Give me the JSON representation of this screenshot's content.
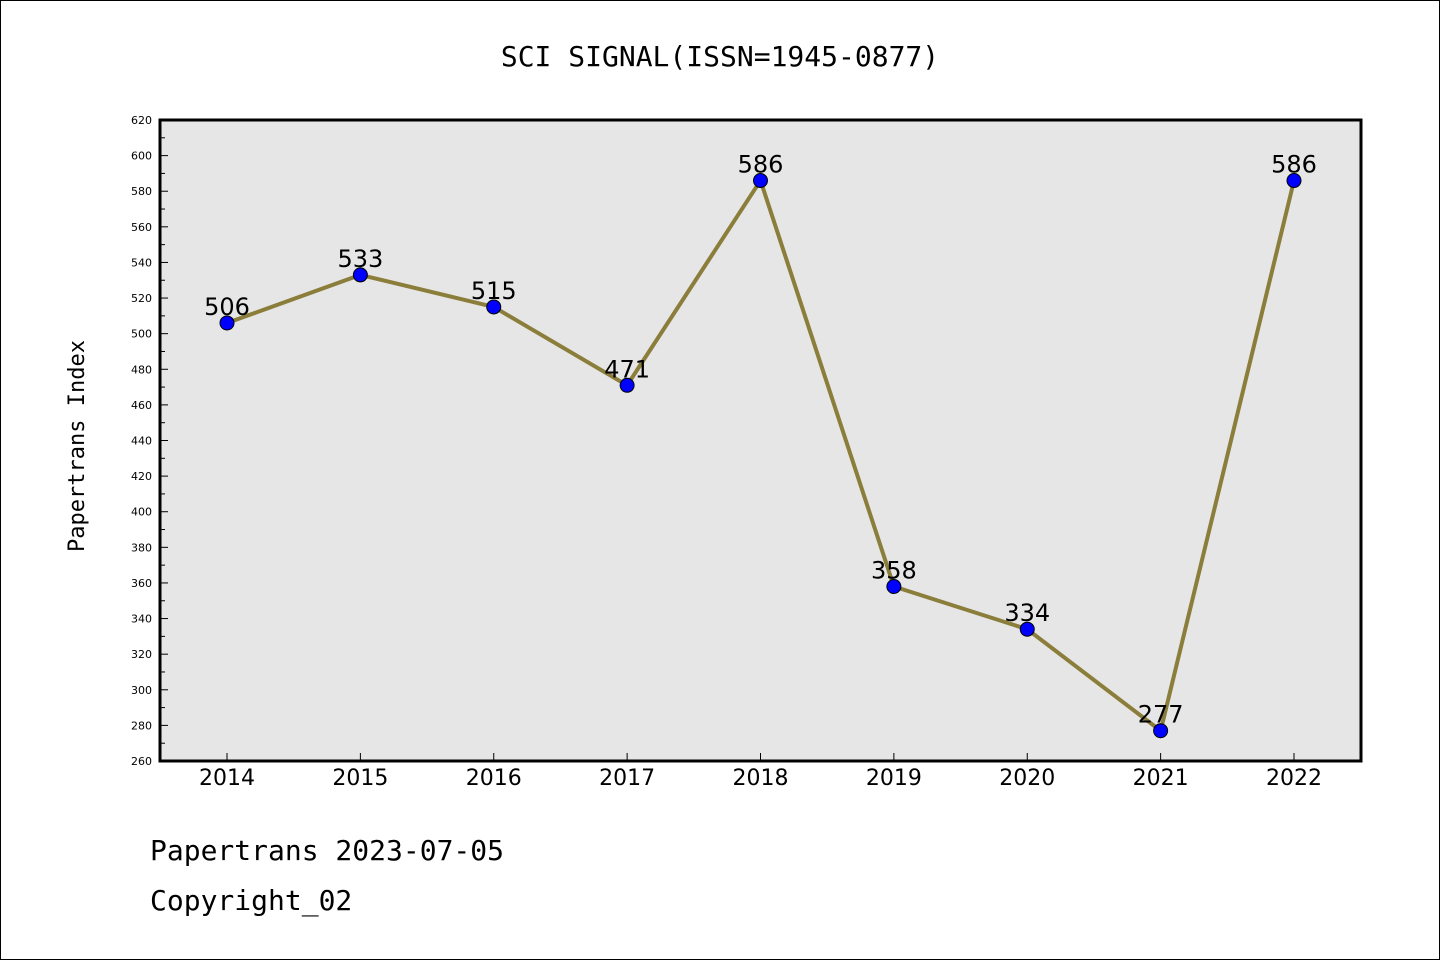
{
  "colors": {
    "plot_bg": "#e6e6e6",
    "line": "#8b7d3a",
    "marker": "#0000ff",
    "axis": "#000000"
  },
  "chart_data": {
    "type": "line",
    "title": "SCI SIGNAL(ISSN=1945-0877)",
    "xlabel": "",
    "ylabel": "Papertrans Index",
    "categories": [
      "2014",
      "2015",
      "2016",
      "2017",
      "2018",
      "2019",
      "2020",
      "2021",
      "2022"
    ],
    "values": [
      506,
      533,
      515,
      471,
      586,
      358,
      334,
      277,
      586
    ],
    "ylim": [
      260,
      620
    ],
    "yticks": [
      260,
      280,
      300,
      320,
      340,
      360,
      380,
      400,
      420,
      440,
      460,
      480,
      500,
      520,
      540,
      560,
      580,
      600,
      620
    ],
    "grid": false,
    "data_labels": true
  },
  "footer": {
    "line1": "Papertrans 2023-07-05",
    "line2": "Copyright_02"
  }
}
